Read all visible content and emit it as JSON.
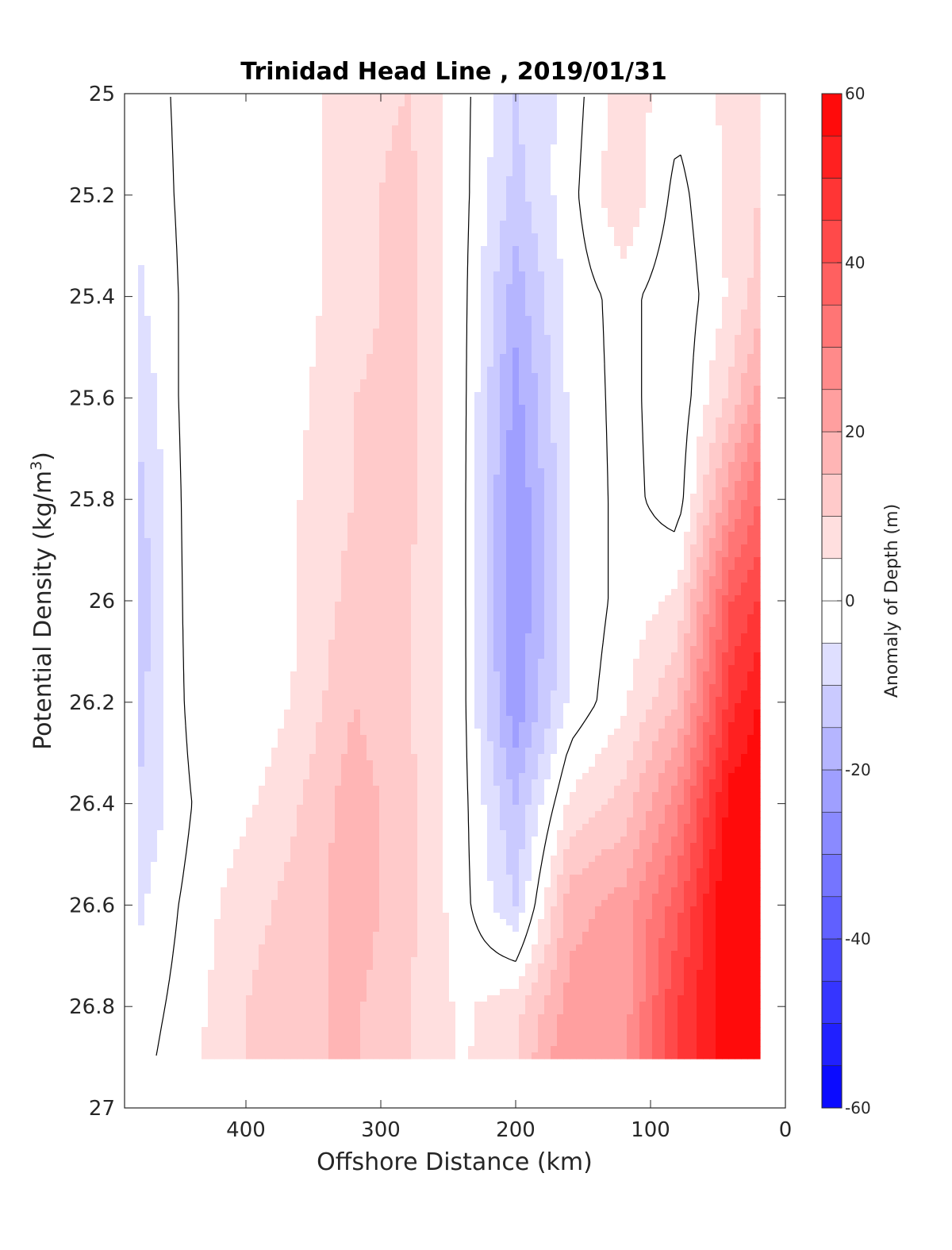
{
  "chart_data": {
    "type": "heatmap",
    "title": "Trinidad Head Line , 2019/01/31",
    "xlabel": "Offshore Distance (km)",
    "ylabel": "Potential Density (kg/m",
    "ylabel_sup": "3",
    "ylabel_close": ")",
    "xlim": [
      490,
      0
    ],
    "ylim": [
      25,
      27
    ],
    "y_reversed": true,
    "x_reversed": true,
    "xticks": [
      400,
      300,
      200,
      100,
      0
    ],
    "yticks": [
      25,
      25.2,
      25.4,
      25.6,
      25.8,
      26,
      26.2,
      26.4,
      26.6,
      26.8,
      27
    ],
    "ytick_labels": [
      "25",
      "25.2",
      "25.4",
      "25.6",
      "25.8",
      "26",
      "26.2",
      "26.4",
      "26.6",
      "26.8",
      "27"
    ],
    "grid": false,
    "colorbar": {
      "label": "Anomaly of Depth (m)",
      "range": [
        -60,
        60
      ],
      "ticks": [
        60,
        40,
        20,
        0,
        -20,
        -40,
        -60
      ],
      "tick_labels": [
        "60",
        "40",
        "20",
        "0",
        "-20",
        "-40",
        "-60"
      ],
      "levels": 24,
      "negative_color": "#0000ff",
      "zero_color": "#ffffff",
      "positive_color": "#ff0000"
    },
    "zero_contour_color": "#000000",
    "x": [
      480,
      440,
      400,
      360,
      320,
      280,
      240,
      200,
      160,
      120,
      80,
      40,
      20
    ],
    "y": [
      25,
      25.2,
      25.4,
      25.6,
      25.8,
      26,
      26.2,
      26.4,
      26.6,
      26.8,
      26.9
    ],
    "values": [
      [
        -3,
        2,
        2,
        3,
        8,
        10,
        2,
        -10,
        -3,
        8,
        2,
        6,
        5
      ],
      [
        -4,
        2,
        2,
        3,
        8,
        12,
        2,
        -12,
        -2,
        10,
        -2,
        7,
        10
      ],
      [
        -6,
        2,
        0,
        3,
        8,
        12,
        2,
        -18,
        -3,
        2,
        -4,
        6,
        12
      ],
      [
        -9,
        3,
        0,
        4,
        10,
        12,
        2,
        -22,
        -4,
        2,
        -4,
        12,
        22
      ],
      [
        -12,
        3,
        0,
        5,
        10,
        12,
        2,
        -25,
        -5,
        2,
        -3,
        25,
        35
      ],
      [
        -14,
        3,
        0,
        5,
        12,
        10,
        2,
        -25,
        -5,
        2,
        6,
        40,
        45
      ],
      [
        -12,
        2,
        0,
        6,
        15,
        10,
        2,
        -24,
        -4,
        4,
        15,
        48,
        55
      ],
      [
        -10,
        0,
        4,
        10,
        18,
        12,
        2,
        -15,
        6,
        12,
        28,
        58,
        60
      ],
      [
        -6,
        2,
        8,
        12,
        18,
        12,
        2,
        -10,
        18,
        22,
        38,
        62,
        62
      ],
      [
        -3,
        3,
        10,
        14,
        16,
        10,
        4,
        8,
        22,
        22,
        45,
        60,
        60
      ],
      [
        -2,
        4,
        10,
        14,
        16,
        10,
        4,
        10,
        25,
        25,
        45,
        60,
        60
      ]
    ]
  }
}
